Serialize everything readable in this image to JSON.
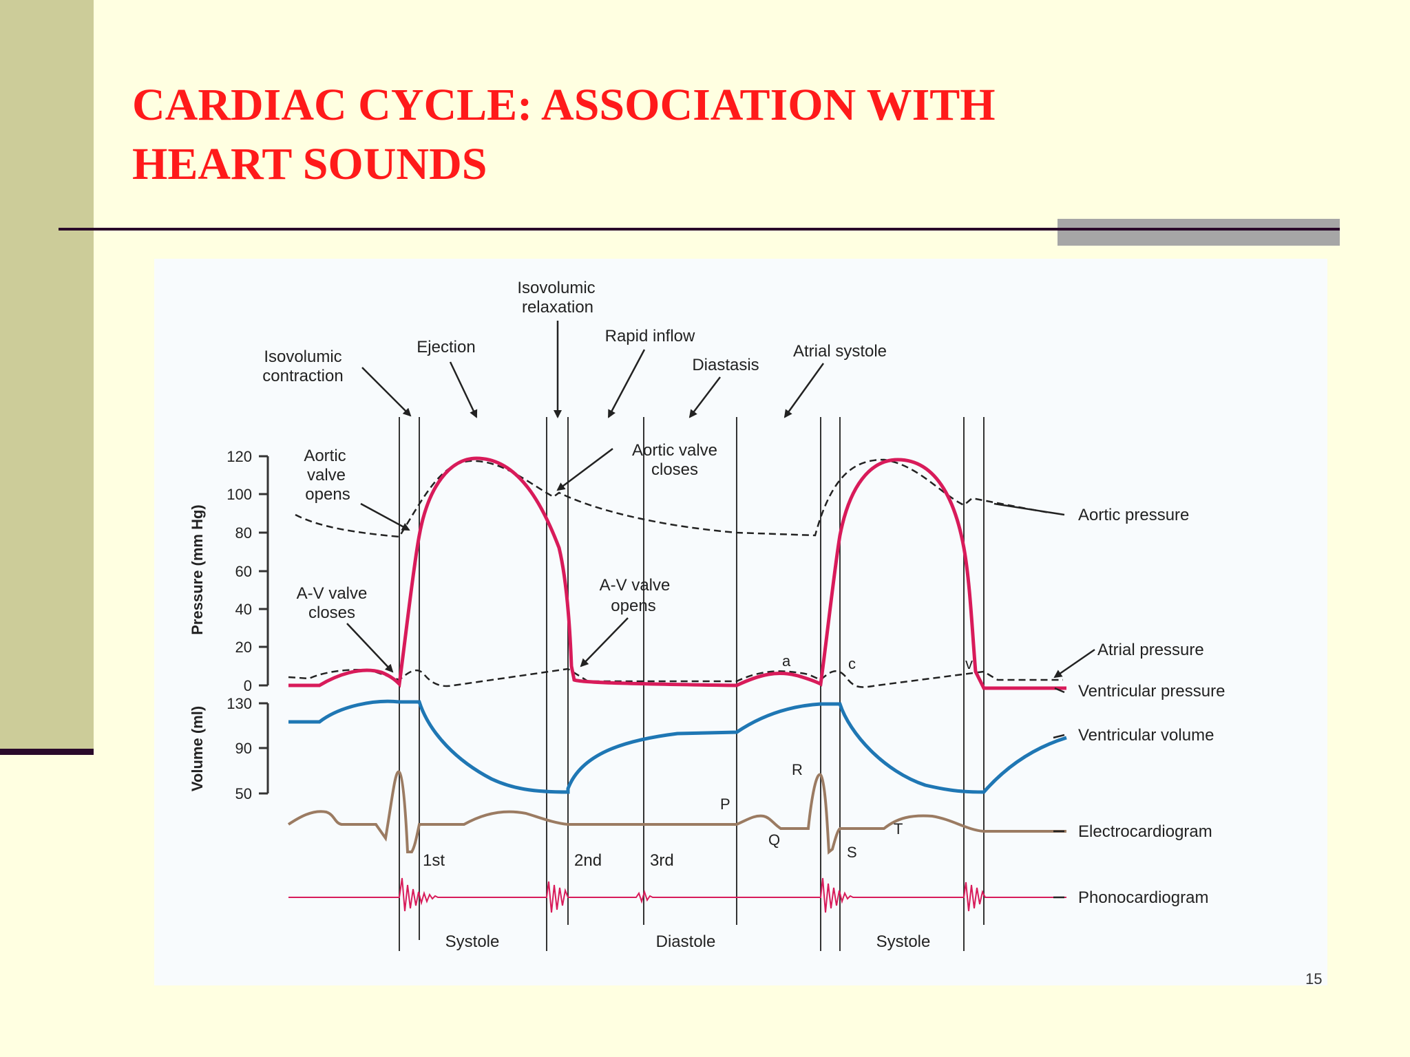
{
  "slide": {
    "title_line1": "CARDIAC CYCLE: ASSOCIATION WITH",
    "title_line2": "HEART SOUNDS",
    "page_number": "15",
    "accent_color": "#ff1a1a",
    "background_color": "#ffffe1"
  },
  "diagram": {
    "phases": {
      "iso_relax_1": "Isovolumic",
      "iso_relax_2": "relaxation",
      "ejection": "Ejection",
      "rapid_inflow": "Rapid inflow",
      "iso_contr_1": "Isovolumic",
      "iso_contr_2": "contraction",
      "diastasis": "Diastasis",
      "atrial_systole": "Atrial systole"
    },
    "events": {
      "aortic_opens_1": "Aortic",
      "aortic_opens_2": "valve",
      "aortic_opens_3": "opens",
      "aortic_closes_1": "Aortic valve",
      "aortic_closes_2": "closes",
      "av_closes_1": "A-V valve",
      "av_closes_2": "closes",
      "av_opens_1": "A-V valve",
      "av_opens_2": "opens"
    },
    "axes": {
      "pressure_label": "Pressure (mm Hg)",
      "volume_label": "Volume (ml)",
      "pressure_ticks": [
        "120",
        "100",
        "80",
        "60",
        "40",
        "20",
        "0"
      ],
      "volume_ticks": [
        "130",
        "90",
        "50"
      ]
    },
    "curves": {
      "aortic_pressure": "Aortic pressure",
      "atrial_pressure": "Atrial pressure",
      "ventricular_pressure": "Ventricular pressure",
      "ventricular_volume": "Ventricular volume",
      "electrocardiogram": "Electrocardiogram",
      "phonocardiogram": "Phonocardiogram"
    },
    "waves": {
      "a": "a",
      "c": "c",
      "v": "v",
      "p": "P",
      "q": "Q",
      "r": "R",
      "s": "S",
      "t": "T"
    },
    "sounds": {
      "first": "1st",
      "second": "2nd",
      "third": "3rd"
    },
    "periods": {
      "systole_1": "Systole",
      "diastole": "Diastole",
      "systole_2": "Systole"
    },
    "colors": {
      "ventricular_pressure": "#d81b5a",
      "ventricular_volume": "#1f77b4",
      "electrocardiogram": "#9b7b62",
      "phonocardiogram": "#d81b5a",
      "dashed": "#222222"
    }
  }
}
